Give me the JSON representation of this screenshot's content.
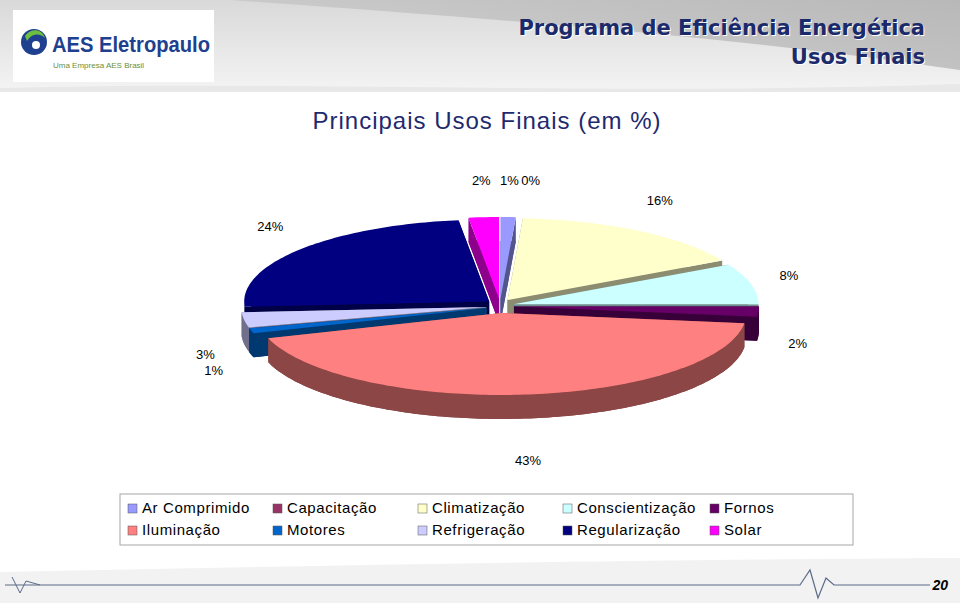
{
  "chart_data": {
    "type": "pie",
    "title": "Principais Usos Finais (em %)",
    "categories": [
      "Ar Comprimido",
      "Capacitação",
      "Climatização",
      "Conscientização",
      "Fornos",
      "Iluminação",
      "Motores",
      "Refrigeração",
      "Regularização",
      "Solar"
    ],
    "values": [
      1,
      0,
      16,
      8,
      2,
      43,
      1,
      3,
      24,
      2
    ],
    "value_labels": [
      "1%",
      "0%",
      "16%",
      "8%",
      "2%",
      "43%",
      "1%",
      "3%",
      "24%",
      "2%"
    ],
    "colors": [
      "#9999ff",
      "#993366",
      "#ffffcc",
      "#ccffff",
      "#660066",
      "#ff8080",
      "#0066cc",
      "#ccccff",
      "#000080",
      "#ff00ff"
    ],
    "data_labels": true,
    "legend": "bottom"
  },
  "header": {
    "logo": "AES Eletropaulo",
    "logo_tagline": "Uma Empresa AES Brasil",
    "title": "Programa de Eficiência Energética",
    "subtitle": "Usos Finais"
  },
  "page_number": "20"
}
